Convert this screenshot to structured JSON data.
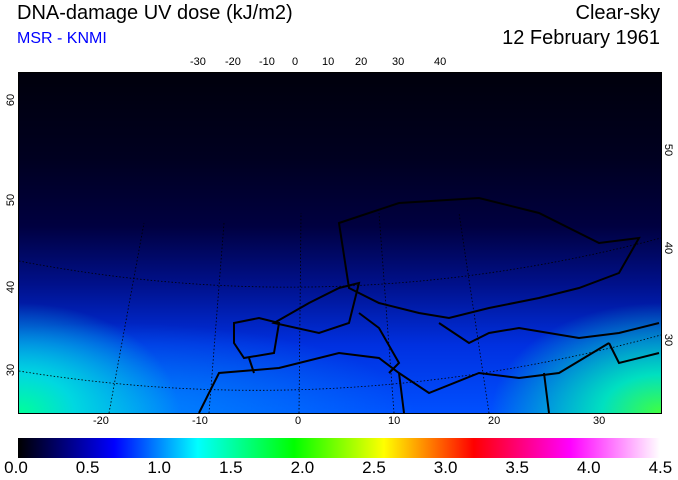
{
  "header": {
    "title": "DNA-damage UV dose (kJ/m2)",
    "source": "MSR - KNMI",
    "condition": "Clear-sky",
    "date": "12 February 1961"
  },
  "map": {
    "top_lon_ticks": [
      "-30",
      "-20",
      "-10",
      "0",
      "10",
      "20",
      "30",
      "40"
    ],
    "bottom_lon_ticks": [
      "-20",
      "-10",
      "0",
      "10",
      "20",
      "30"
    ],
    "left_lat_ticks": [
      "60",
      "50",
      "40",
      "30"
    ],
    "right_lat_ticks": [
      "50",
      "40",
      "30"
    ]
  },
  "colorbar": {
    "min": 0.0,
    "max": 4.5,
    "labels": [
      "0.0",
      "0.5",
      "1.0",
      "1.5",
      "2.0",
      "2.5",
      "3.0",
      "3.5",
      "4.0",
      "4.5"
    ]
  }
}
